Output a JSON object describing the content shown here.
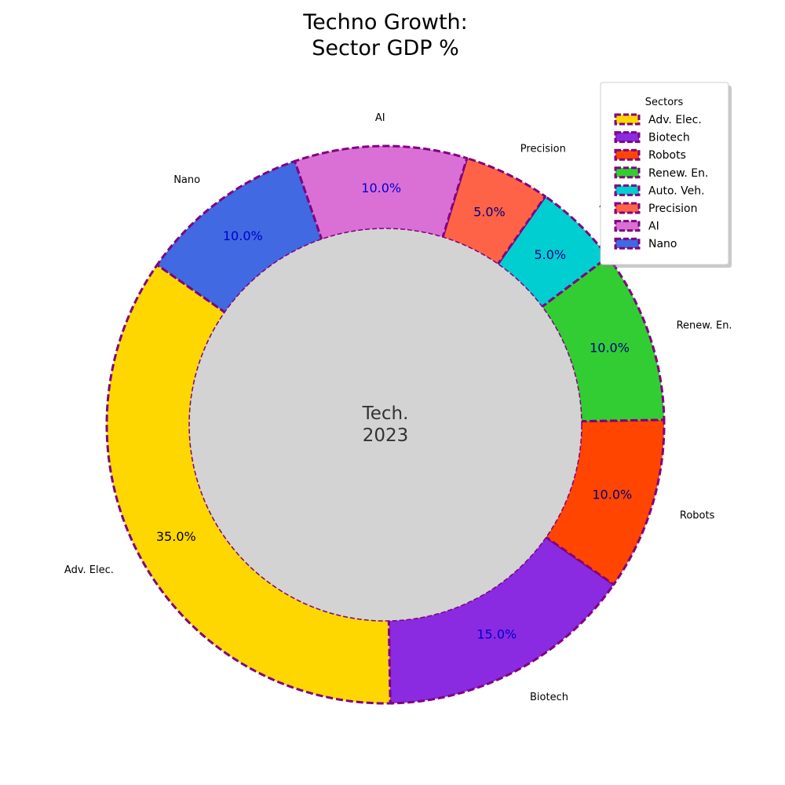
{
  "chart_data": {
    "type": "pie",
    "title_lines": [
      "Techno Growth:",
      "Sector GDP %"
    ],
    "center_lines": [
      "Tech.",
      "2023"
    ],
    "categories": [
      "Adv. Elec.",
      "Biotech",
      "Robots",
      "Renew. En.",
      "Auto. Veh.",
      "Precision",
      "AI",
      "Nano"
    ],
    "values": [
      35,
      15,
      10,
      10,
      5,
      5,
      10,
      10
    ],
    "value_labels": [
      "35.0%",
      "15.0%",
      "10.0%",
      "10.0%",
      "5.0%",
      "5.0%",
      "10.0%",
      "10.0%"
    ],
    "colors": [
      "#FFD700",
      "#8A2BE2",
      "#FF4500",
      "#32CD32",
      "#00CED1",
      "#FF6347",
      "#DA70D6",
      "#4169E1"
    ],
    "label_colors": [
      "#000000",
      "#0000CD",
      "#000080",
      "#000080",
      "#000080",
      "#000080",
      "#0000CD",
      "#0000CD"
    ],
    "edge_color": "#800080",
    "center_color": "#D3D3D3",
    "start_angle": 145,
    "legend": {
      "title": "Sectors",
      "placement": "top-right",
      "entries": [
        "Adv. Elec.",
        "Biotech",
        "Robots",
        "Renew. En.",
        "Auto. Veh.",
        "Precision",
        "AI",
        "Nano"
      ]
    }
  }
}
